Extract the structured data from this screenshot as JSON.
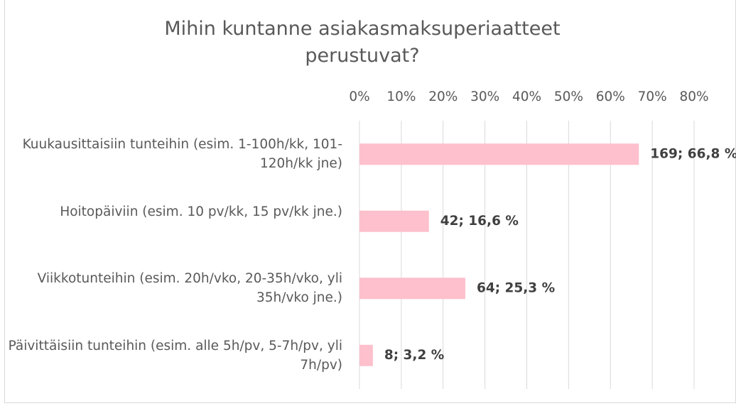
{
  "chart_data": {
    "type": "bar",
    "orientation": "horizontal",
    "title": "Mihin kuntanne asiakasmaksuperiaatteet perustuvat?",
    "categories": [
      "Kuukausittaisiin tunteihin (esim. 1-100h/kk, 101-120h/kk jne)",
      "Hoitopäiviin (esim. 10 pv/kk, 15 pv/kk jne.)",
      "Viikkotunteihin (esim. 20h/vko, 20-35h/vko, yli 35h/vko jne.)",
      "Päivittäisiin tunteihin (esim. alle 5h/pv, 5-7h/pv, yli 7h/pv)"
    ],
    "values": [
      66.8,
      16.6,
      25.3,
      3.2
    ],
    "value_labels": [
      "169; 66,8 %",
      "42; 16,6 %",
      "64; 25,3 %",
      "8; 3,2 %"
    ],
    "color": "#fdc0cc",
    "xlim": [
      0,
      80
    ],
    "xticks": [
      {
        "value": 0,
        "label": "0%"
      },
      {
        "value": 10,
        "label": "10%"
      },
      {
        "value": 20,
        "label": "20%"
      },
      {
        "value": 30,
        "label": "30%"
      },
      {
        "value": 40,
        "label": "40%"
      },
      {
        "value": 50,
        "label": "50%"
      },
      {
        "value": 60,
        "label": "60%"
      },
      {
        "value": 70,
        "label": "70%"
      },
      {
        "value": 80,
        "label": "80%"
      }
    ],
    "grid": true
  }
}
